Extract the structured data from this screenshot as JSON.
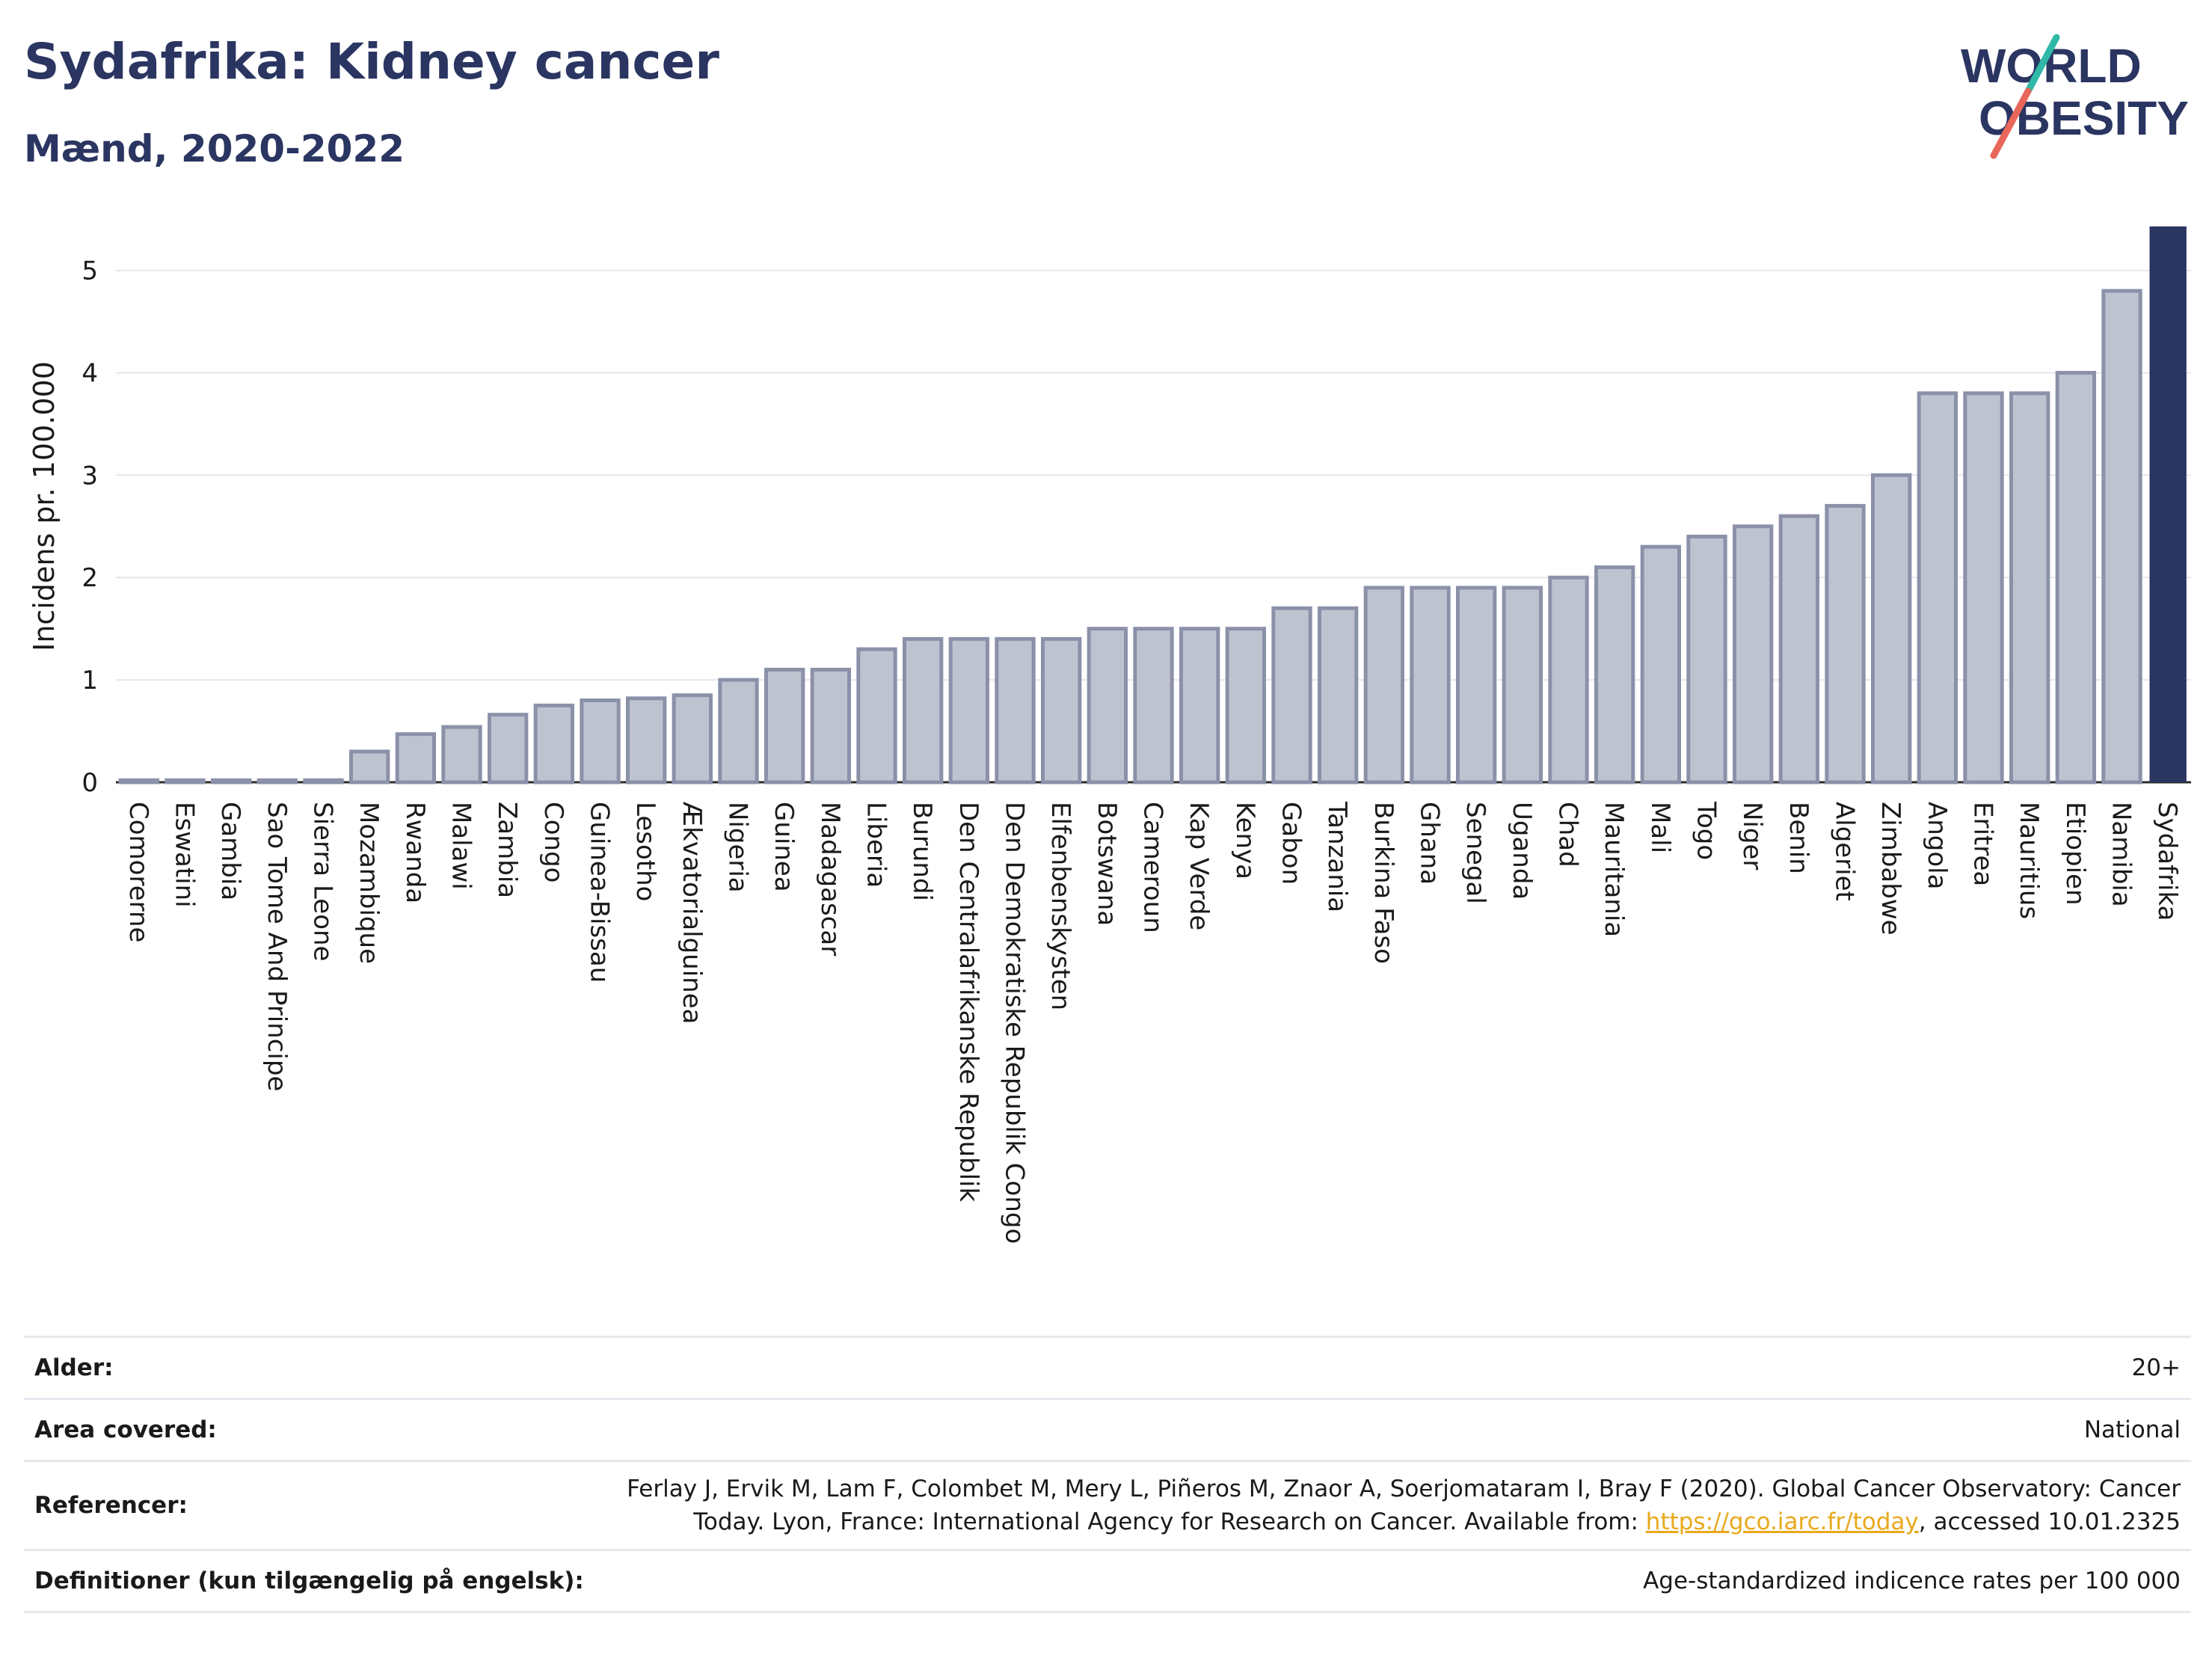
{
  "header": {
    "title": "Sydafrika: Kidney cancer",
    "subtitle": "Mænd, 2020-2022"
  },
  "logo": {
    "line1": "WORLD",
    "line2": "OBESITY"
  },
  "colors": {
    "highlight": "#2b3561",
    "bar_fill": "#bfc3d0",
    "bar_stroke": "#8c91aa",
    "accent_teal": "#2fb8a8",
    "accent_red": "#e8665a"
  },
  "chart_data": {
    "type": "bar",
    "ylabel": "Incidens pr. 100.000",
    "xlabel": "",
    "ylim": [
      0,
      5.45
    ],
    "yticks": [
      0,
      1,
      2,
      3,
      4,
      5
    ],
    "grid": true,
    "highlight": "Sydafrika",
    "categories": [
      "Comorerne",
      "Eswatini",
      "Gambia",
      "Sao Tome And Principe",
      "Sierra Leone",
      "Mozambique",
      "Rwanda",
      "Malawi",
      "Zambia",
      "Congo",
      "Guinea-Bissau",
      "Lesotho",
      "Ækvatorialguinea",
      "Nigeria",
      "Guinea",
      "Madagascar",
      "Liberia",
      "Burundi",
      "Den Centralafrikanske Republik",
      "Den Demokratiske Republik Congo",
      "Elfenbenskysten",
      "Botswana",
      "Cameroun",
      "Kap Verde",
      "Kenya",
      "Gabon",
      "Tanzania",
      "Burkina Faso",
      "Ghana",
      "Senegal",
      "Uganda",
      "Chad",
      "Mauritania",
      "Mali",
      "Togo",
      "Niger",
      "Benin",
      "Algeriet",
      "Zimbabwe",
      "Angola",
      "Eritrea",
      "Mauritius",
      "Etiopien",
      "Namibia",
      "Sydafrika"
    ],
    "values": [
      0.02,
      0.02,
      0.02,
      0.02,
      0.02,
      0.3,
      0.47,
      0.54,
      0.66,
      0.75,
      0.8,
      0.82,
      0.85,
      1.0,
      1.1,
      1.1,
      1.3,
      1.4,
      1.4,
      1.4,
      1.4,
      1.5,
      1.5,
      1.5,
      1.5,
      1.7,
      1.7,
      1.9,
      1.9,
      1.9,
      1.9,
      2.0,
      2.1,
      2.3,
      2.4,
      2.5,
      2.6,
      2.7,
      3.0,
      3.8,
      3.8,
      3.8,
      4.0,
      4.8,
      5.43
    ]
  },
  "info": {
    "alder_label": "Alder:",
    "alder_value": "20+",
    "area_label": "Area covered:",
    "area_value": "National",
    "ref_label": "Referencer:",
    "ref_text_1": "Ferlay J, Ervik M, Lam F, Colombet M, Mery L, Piñeros M, Znaor A, Soerjomataram I, Bray F (2020). Global Cancer Observatory: Cancer",
    "ref_text_2": "Today. Lyon, France: International Agency for Research on Cancer. Available from: ",
    "ref_link": "https://gco.iarc.fr/today",
    "ref_text_3": ", accessed 10.01.2325",
    "def_label": "Definitioner (kun tilgængelig på engelsk):",
    "def_value": "Age-standardized indicence rates per 100 000"
  }
}
